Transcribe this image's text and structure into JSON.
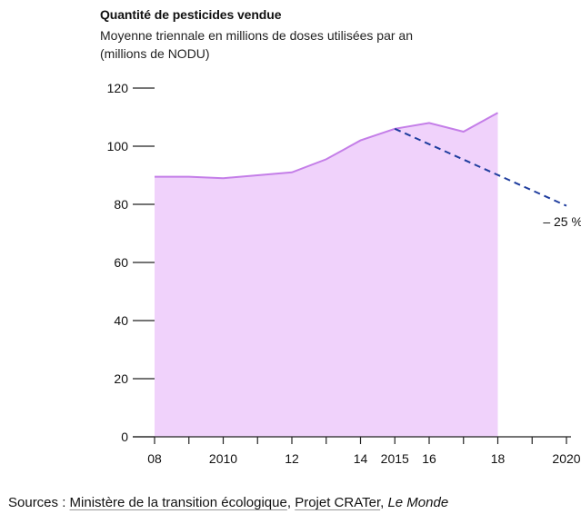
{
  "chart_data": {
    "type": "area",
    "title": "Quantité de pesticides vendue",
    "subtitle_line1": "Moyenne triennale en millions de doses utilisées par an",
    "subtitle_line2": "(millions de NODU)",
    "xlabel": "",
    "ylabel": "",
    "xlim": [
      2008,
      2020
    ],
    "ylim": [
      0,
      120
    ],
    "y_ticks": [
      0,
      20,
      40,
      60,
      80,
      100,
      120
    ],
    "x_ticks": [
      {
        "year": 2008,
        "label": "08"
      },
      {
        "year": 2009,
        "label": ""
      },
      {
        "year": 2010,
        "label": "2010"
      },
      {
        "year": 2011,
        "label": ""
      },
      {
        "year": 2012,
        "label": "12"
      },
      {
        "year": 2013,
        "label": ""
      },
      {
        "year": 2014,
        "label": "14"
      },
      {
        "year": 2015,
        "label": "2015"
      },
      {
        "year": 2016,
        "label": "16"
      },
      {
        "year": 2017,
        "label": ""
      },
      {
        "year": 2018,
        "label": "18"
      },
      {
        "year": 2019,
        "label": ""
      },
      {
        "year": 2020,
        "label": "2020"
      }
    ],
    "grid": false,
    "series": [
      {
        "x": [
          2008,
          2009,
          2010,
          2011,
          2012,
          2013,
          2014,
          2015,
          2016,
          2017,
          2018
        ],
        "values": [
          89.5,
          89.5,
          89,
          90,
          91,
          95.5,
          102,
          106,
          108,
          105,
          111.5
        ],
        "color": "#c47ee8",
        "fill": "#f0d2fb"
      }
    ],
    "target_line": {
      "x": [
        2015,
        2020
      ],
      "values": [
        106,
        79.5
      ],
      "color": "#1f3d9e",
      "style": "dashed"
    },
    "annotation": {
      "text": "– 25 %",
      "x": 2019.5,
      "y": 74
    }
  },
  "sources": {
    "prefix": "Sources : ",
    "link1": "Ministère de la transition écologique",
    "sep": ", ",
    "link2": "Projet CRATer",
    "sep2": ", ",
    "publisher": "Le Monde"
  }
}
